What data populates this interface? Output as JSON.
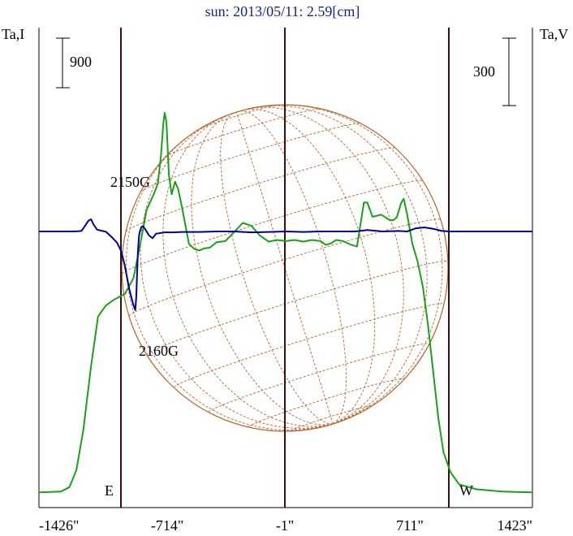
{
  "chart_data": {
    "type": "line",
    "title": "sun: 2013/05/11: 2.59[cm]",
    "left_axis_label": "Ta,I",
    "right_axis_label": "Ta,V",
    "scale_bars": {
      "left": "900",
      "right": "300"
    },
    "x_ticks": [
      "-1426\"",
      "-714\"",
      "-1\"",
      "711\"",
      "1423\""
    ],
    "xlim": [
      -1426,
      1423
    ],
    "limb_labels": {
      "east": "E",
      "west": "W"
    },
    "annotations": [
      "2150G",
      "2160G"
    ],
    "series": [
      {
        "name": "Ta,I",
        "color": "#1aa01a",
        "axis": "left",
        "points": [
          [
            -1426,
            55
          ],
          [
            -1300,
            70
          ],
          [
            -1250,
            150
          ],
          [
            -1210,
            460
          ],
          [
            -1170,
            1180
          ],
          [
            -1125,
            2350
          ],
          [
            -1085,
            3250
          ],
          [
            -1040,
            3450
          ],
          [
            -990,
            3560
          ],
          [
            -930,
            3660
          ],
          [
            -880,
            3950
          ],
          [
            -845,
            4500
          ],
          [
            -805,
            5180
          ],
          [
            -762,
            5480
          ],
          [
            -740,
            5660
          ],
          [
            -722,
            6150
          ],
          [
            -708,
            6750
          ],
          [
            -700,
            6950
          ],
          [
            -690,
            6780
          ],
          [
            -676,
            5820
          ],
          [
            -660,
            5470
          ],
          [
            -640,
            5700
          ],
          [
            -622,
            5560
          ],
          [
            -600,
            5230
          ],
          [
            -560,
            4570
          ],
          [
            -530,
            4480
          ],
          [
            -500,
            4450
          ],
          [
            -470,
            4490
          ],
          [
            -440,
            4500
          ],
          [
            -400,
            4600
          ],
          [
            -350,
            4620
          ],
          [
            -300,
            4780
          ],
          [
            -250,
            4950
          ],
          [
            -200,
            4900
          ],
          [
            -150,
            4720
          ],
          [
            -100,
            4610
          ],
          [
            -50,
            4640
          ],
          [
            0,
            4620
          ],
          [
            50,
            4640
          ],
          [
            100,
            4610
          ],
          [
            150,
            4640
          ],
          [
            200,
            4620
          ],
          [
            230,
            4550
          ],
          [
            260,
            4580
          ],
          [
            290,
            4640
          ],
          [
            330,
            4620
          ],
          [
            370,
            4560
          ],
          [
            410,
            4520
          ],
          [
            450,
            5320
          ],
          [
            470,
            5320
          ],
          [
            500,
            5060
          ],
          [
            550,
            5100
          ],
          [
            600,
            5000
          ],
          [
            620,
            5000
          ],
          [
            640,
            5050
          ],
          [
            665,
            5310
          ],
          [
            680,
            5390
          ],
          [
            700,
            5100
          ],
          [
            730,
            4570
          ],
          [
            760,
            4250
          ],
          [
            790,
            3800
          ],
          [
            820,
            3100
          ],
          [
            850,
            2250
          ],
          [
            880,
            1400
          ],
          [
            910,
            780
          ],
          [
            950,
            420
          ],
          [
            1000,
            200
          ],
          [
            1100,
            110
          ],
          [
            1250,
            70
          ],
          [
            1423,
            55
          ]
        ]
      },
      {
        "name": "Ta,V",
        "color": "#00008b",
        "axis": "right",
        "points": [
          [
            -1426,
            0
          ],
          [
            -1240,
            0
          ],
          [
            -1200,
            1
          ],
          [
            -1180,
            3
          ],
          [
            -1160,
            25
          ],
          [
            -1140,
            48
          ],
          [
            -1125,
            54
          ],
          [
            -1110,
            30
          ],
          [
            -1090,
            8
          ],
          [
            -1060,
            2
          ],
          [
            -1040,
            -1
          ],
          [
            -1010,
            -22
          ],
          [
            -975,
            -50
          ],
          [
            -950,
            -90
          ],
          [
            -930,
            -155
          ],
          [
            -905,
            -255
          ],
          [
            -882,
            -325
          ],
          [
            -870,
            -350
          ],
          [
            -864,
            -290
          ],
          [
            -855,
            -90
          ],
          [
            -848,
            -18
          ],
          [
            -843,
            0
          ],
          [
            -835,
            20
          ],
          [
            -825,
            23
          ],
          [
            -810,
            6
          ],
          [
            -790,
            -18
          ],
          [
            -770,
            -30
          ],
          [
            -750,
            -10
          ],
          [
            -700,
            -4
          ],
          [
            -650,
            -4
          ],
          [
            -600,
            -2
          ],
          [
            -500,
            -2
          ],
          [
            -400,
            0
          ],
          [
            -300,
            0
          ],
          [
            -200,
            -4
          ],
          [
            -100,
            -2
          ],
          [
            0,
            0
          ],
          [
            100,
            -2
          ],
          [
            200,
            0
          ],
          [
            300,
            0
          ],
          [
            400,
            0
          ],
          [
            470,
            6
          ],
          [
            560,
            0
          ],
          [
            650,
            2
          ],
          [
            700,
            0
          ],
          [
            750,
            14
          ],
          [
            800,
            18
          ],
          [
            850,
            12
          ],
          [
            900,
            2
          ],
          [
            950,
            0
          ],
          [
            1423,
            0
          ]
        ]
      }
    ],
    "grid": false,
    "legend": "none",
    "overlay": "solar disk with heliographic latitude/longitude grid"
  }
}
